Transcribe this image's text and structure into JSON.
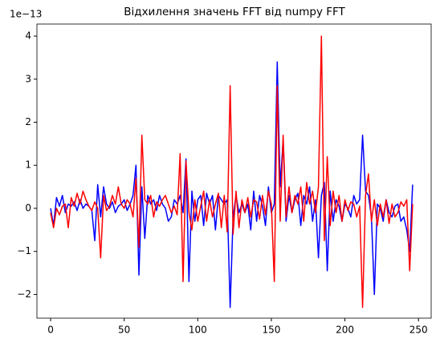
{
  "chart_data": {
    "type": "line",
    "title": "Відхилення значень FFT від numpy FFT",
    "axis_offset": "1e−13",
    "x": [
      0,
      2,
      4,
      6,
      8,
      10,
      12,
      14,
      16,
      18,
      20,
      22,
      24,
      26,
      28,
      30,
      32,
      34,
      36,
      38,
      40,
      42,
      44,
      46,
      48,
      50,
      52,
      54,
      56,
      58,
      60,
      62,
      64,
      66,
      68,
      70,
      72,
      74,
      76,
      78,
      80,
      82,
      84,
      86,
      88,
      90,
      92,
      94,
      96,
      98,
      100,
      102,
      104,
      106,
      108,
      110,
      112,
      114,
      116,
      118,
      120,
      122,
      124,
      126,
      128,
      130,
      132,
      134,
      136,
      138,
      140,
      142,
      144,
      146,
      148,
      150,
      152,
      154,
      156,
      158,
      160,
      162,
      164,
      166,
      168,
      170,
      172,
      174,
      176,
      178,
      180,
      182,
      184,
      186,
      188,
      190,
      192,
      194,
      196,
      198,
      200,
      202,
      204,
      206,
      208,
      210,
      212,
      214,
      216,
      218,
      220,
      222,
      224,
      226,
      228,
      230,
      232,
      234,
      236,
      238,
      240,
      242,
      244,
      246
    ],
    "series": [
      {
        "color": "#0000ff",
        "values": [
          0,
          -0.4,
          0.25,
          0.05,
          0.3,
          -0.1,
          0.1,
          0.05,
          0.15,
          -0.05,
          0.2,
          0,
          0.1,
          0.05,
          -0.05,
          -0.75,
          0.55,
          -0.2,
          0.5,
          0.1,
          0,
          0.15,
          -0.1,
          0.05,
          0.1,
          0.2,
          -0.05,
          0.1,
          0.3,
          1.0,
          -1.55,
          0.5,
          -0.7,
          0.3,
          0.1,
          0.2,
          -0.05,
          0.3,
          0.1,
          0,
          -0.3,
          -0.2,
          0.2,
          0.1,
          0.3,
          -0.1,
          1.15,
          -1.7,
          0.4,
          -0.3,
          0.2,
          0.3,
          -0.4,
          0.35,
          0.1,
          0.3,
          -0.5,
          0.3,
          0.2,
          0.1,
          0.2,
          -2.3,
          -0.2,
          0.3,
          -0.1,
          0.1,
          -0.1,
          0.1,
          -0.5,
          0.4,
          -0.3,
          0.3,
          0.05,
          -0.4,
          0.5,
          -0.1,
          0.1,
          3.4,
          0.5,
          1.6,
          -0.3,
          0.3,
          -0.1,
          0.2,
          0.35,
          -0.4,
          0.3,
          0.1,
          0.5,
          -0.3,
          0.2,
          -1.15,
          0.3,
          0.6,
          -1.45,
          0.4,
          -0.3,
          0.2,
          0.05,
          -0.3,
          0.1,
          0,
          -0.2,
          0.3,
          0.1,
          0.2,
          1.7,
          0.4,
          0.3,
          -0.2,
          -2.0,
          0.1,
          0,
          -0.3,
          0.2,
          -0.1,
          -0.2,
          0.05,
          0.1,
          -0.3,
          -0.2,
          -0.5,
          -1.0,
          0.55
        ]
      },
      {
        "color": "#ff0000",
        "values": [
          -0.1,
          -0.45,
          0,
          -0.15,
          0.05,
          0.1,
          -0.45,
          0.25,
          0.05,
          0.35,
          0.1,
          0.4,
          0.2,
          0.05,
          -0.05,
          0.15,
          0,
          -1.15,
          0.3,
          -0.05,
          0.05,
          0.3,
          0.1,
          0.5,
          0.1,
          0,
          0.2,
          0.1,
          -0.2,
          0.7,
          -0.9,
          1.7,
          0.2,
          0.1,
          0.3,
          -0.2,
          0.15,
          0.05,
          0.2,
          0.3,
          0.1,
          -0.1,
          0.05,
          -0.15,
          1.27,
          -1.7,
          1.1,
          -0.1,
          -0.5,
          0.2,
          -0.3,
          0.05,
          0.4,
          -0.3,
          0.2,
          -0.2,
          0.1,
          0.35,
          -0.45,
          0.3,
          -0.55,
          2.85,
          -0.6,
          0.4,
          -0.45,
          0.2,
          -0.1,
          0.25,
          -0.2,
          0.2,
          0.15,
          -0.25,
          0.3,
          -0.15,
          0.4,
          0.1,
          -1.7,
          2.85,
          -0.3,
          1.7,
          -0.2,
          0.5,
          -0.1,
          0.3,
          0.1,
          0.5,
          -0.3,
          0.6,
          0.1,
          0.4,
          -0.1,
          0.5,
          4.0,
          -0.75,
          1.2,
          -0.4,
          0.4,
          -0.1,
          0.3,
          -0.3,
          0.2,
          -0.05,
          0.15,
          0.1,
          -0.2,
          0.05,
          -2.3,
          0.3,
          0.8,
          -0.3,
          0.2,
          -0.4,
          0.1,
          -0.2,
          0.2,
          -0.35,
          0.1,
          -0.2,
          -0.1,
          0.15,
          0.05,
          0.2,
          -1.45,
          0.1
        ]
      }
    ],
    "xlim": [
      -9.3,
      258.6
    ],
    "xticks": [
      0,
      50,
      100,
      150,
      200,
      250
    ],
    "ylim": [
      -2.55,
      4.28
    ],
    "yticks": [
      {
        "value": -2,
        "label": "−2"
      },
      {
        "value": -1,
        "label": "−1"
      },
      0,
      1,
      2,
      3,
      4
    ]
  }
}
